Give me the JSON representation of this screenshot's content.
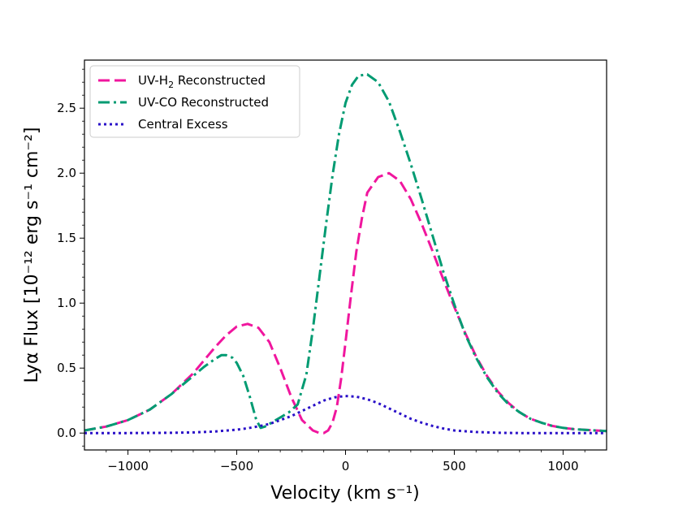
{
  "chart_data": {
    "type": "line",
    "title": "",
    "xlabel": "Velocity (km s⁻¹)",
    "ylabel": "Lyα Flux [10⁻¹² erg s⁻¹ cm⁻²]",
    "xlim": [
      -1200,
      1200
    ],
    "ylim": [
      -0.13,
      2.87
    ],
    "xticks": [
      -1000,
      -500,
      0,
      500,
      1000
    ],
    "xtick_labels": [
      "−1000",
      "−500",
      "0",
      "500",
      "1000"
    ],
    "yticks": [
      0.0,
      0.5,
      1.0,
      1.5,
      2.0,
      2.5
    ],
    "ytick_labels": [
      "0.0",
      "0.5",
      "1.0",
      "1.5",
      "2.0",
      "2.5"
    ],
    "grid": false,
    "legend_position": "top-left",
    "series": [
      {
        "name": "UV-H₂ Reconstructed",
        "legend_main": "UV-H",
        "legend_sub": "2",
        "legend_rest": " Reconstructed",
        "color": "#f0169e",
        "style": "dashed",
        "x": [
          -1200,
          -1100,
          -1000,
          -900,
          -800,
          -700,
          -600,
          -550,
          -500,
          -450,
          -400,
          -350,
          -300,
          -250,
          -200,
          -150,
          -120,
          -100,
          -80,
          -60,
          -40,
          -20,
          0,
          25,
          50,
          75,
          100,
          150,
          200,
          250,
          300,
          350,
          400,
          450,
          500,
          550,
          600,
          650,
          700,
          750,
          800,
          850,
          900,
          950,
          1000,
          1050,
          1100,
          1150,
          1200
        ],
        "y": [
          0.02,
          0.05,
          0.1,
          0.18,
          0.3,
          0.46,
          0.66,
          0.75,
          0.82,
          0.84,
          0.81,
          0.7,
          0.5,
          0.28,
          0.1,
          0.02,
          0.0,
          0.0,
          0.02,
          0.08,
          0.2,
          0.42,
          0.7,
          1.06,
          1.4,
          1.65,
          1.85,
          1.97,
          2.0,
          1.94,
          1.8,
          1.61,
          1.4,
          1.18,
          0.97,
          0.77,
          0.59,
          0.44,
          0.32,
          0.23,
          0.16,
          0.11,
          0.08,
          0.055,
          0.04,
          0.03,
          0.025,
          0.02,
          0.015
        ]
      },
      {
        "name": "UV-CO Reconstructed",
        "legend_main": "UV-CO Reconstructed",
        "legend_sub": "",
        "legend_rest": "",
        "color": "#009b72",
        "style": "dashdot",
        "x": [
          -1200,
          -1100,
          -1000,
          -900,
          -800,
          -700,
          -650,
          -600,
          -570,
          -550,
          -520,
          -500,
          -470,
          -440,
          -410,
          -390,
          -370,
          -340,
          -300,
          -260,
          -220,
          -180,
          -150,
          -120,
          -90,
          -60,
          -30,
          0,
          30,
          60,
          100,
          150,
          200,
          250,
          300,
          350,
          400,
          450,
          500,
          550,
          600,
          650,
          700,
          750,
          800,
          850,
          900,
          950,
          1000,
          1050,
          1100,
          1150,
          1200
        ],
        "y": [
          0.02,
          0.05,
          0.1,
          0.18,
          0.3,
          0.44,
          0.51,
          0.57,
          0.6,
          0.6,
          0.58,
          0.54,
          0.44,
          0.28,
          0.1,
          0.04,
          0.05,
          0.08,
          0.12,
          0.16,
          0.22,
          0.45,
          0.8,
          1.2,
          1.6,
          1.98,
          2.3,
          2.54,
          2.68,
          2.75,
          2.76,
          2.7,
          2.55,
          2.32,
          2.07,
          1.8,
          1.52,
          1.24,
          0.99,
          0.76,
          0.58,
          0.43,
          0.31,
          0.22,
          0.16,
          0.11,
          0.08,
          0.055,
          0.04,
          0.03,
          0.025,
          0.02,
          0.015
        ]
      },
      {
        "name": "Central Excess",
        "legend_main": "Central Excess",
        "legend_sub": "",
        "legend_rest": "",
        "color": "#2a10c8",
        "style": "dotted",
        "x": [
          -1200,
          -1000,
          -800,
          -700,
          -600,
          -500,
          -450,
          -400,
          -350,
          -300,
          -250,
          -200,
          -150,
          -100,
          -50,
          0,
          50,
          100,
          150,
          200,
          250,
          300,
          350,
          400,
          450,
          500,
          600,
          700,
          800,
          1000,
          1200
        ],
        "y": [
          0.0,
          0.0,
          0.002,
          0.005,
          0.012,
          0.026,
          0.037,
          0.052,
          0.07,
          0.1,
          0.13,
          0.17,
          0.21,
          0.25,
          0.275,
          0.285,
          0.28,
          0.26,
          0.23,
          0.19,
          0.15,
          0.11,
          0.08,
          0.055,
          0.035,
          0.02,
          0.008,
          0.002,
          0.0,
          0.0,
          0.0
        ]
      }
    ]
  }
}
